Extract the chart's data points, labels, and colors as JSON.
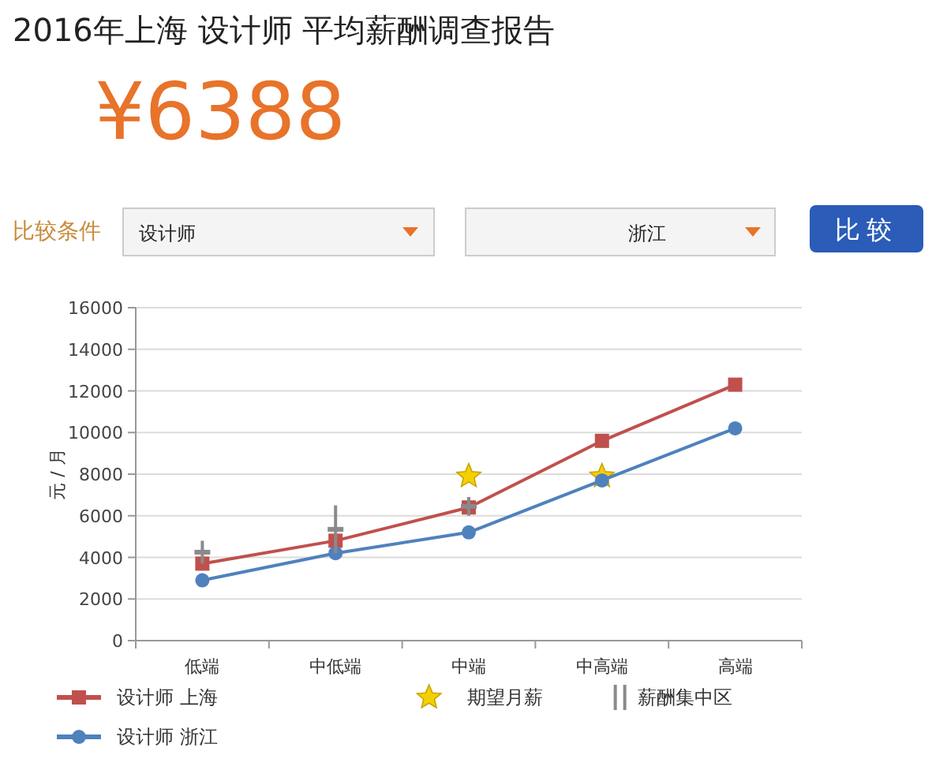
{
  "chart_data": {
    "type": "line",
    "title": "2016年上海 设计师 平均薪酬调查报告",
    "annotations": [
      "¥6388",
      "比较条件",
      "设计师",
      "浙江",
      "比较"
    ],
    "ylabel": "元 / 月",
    "categories": [
      "低端",
      "中低端",
      "中端",
      "中高端",
      "高端"
    ],
    "series": [
      {
        "name": "设计师 上海",
        "color": "#c0504d",
        "marker": "square",
        "values": [
          3700,
          4800,
          6400,
          9600,
          12300
        ]
      },
      {
        "name": "设计师 浙江",
        "color": "#4f81bd",
        "marker": "circle",
        "values": [
          2900,
          4200,
          5200,
          7700,
          10200
        ]
      },
      {
        "name": "期望月薪",
        "type": "scatter",
        "color": "#f5d000",
        "marker": "star",
        "values": [
          null,
          null,
          7900,
          7900,
          null
        ]
      },
      {
        "name": "薪酬集中区",
        "type": "scatter",
        "color": "#8a8a8a",
        "values": [
          4250,
          5350,
          6450,
          null,
          null
        ],
        "errors": [
          [
            3700,
            4800
          ],
          [
            4200,
            6500
          ],
          [
            6000,
            6900
          ],
          null,
          null
        ]
      }
    ],
    "ylim": [
      0,
      16000
    ],
    "yticks": [
      0,
      2000,
      4000,
      6000,
      8000,
      10000,
      12000,
      14000,
      16000
    ],
    "grid": "y",
    "legend": "bottom left"
  }
}
